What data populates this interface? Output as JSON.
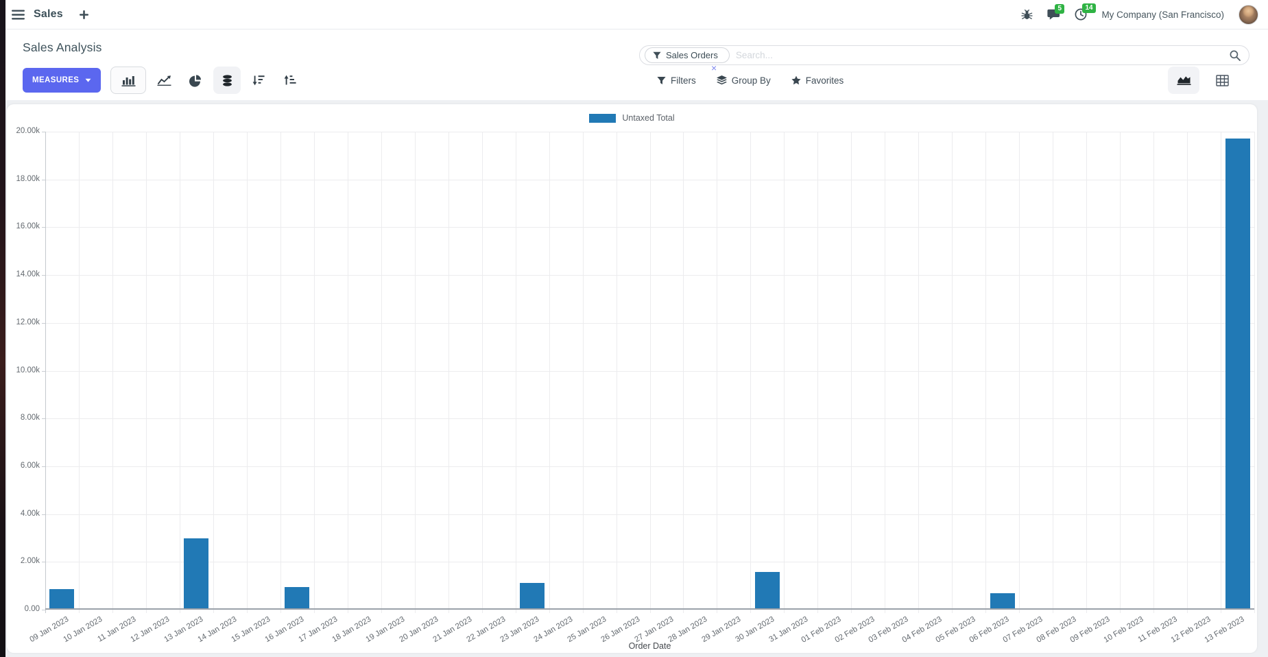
{
  "navbar": {
    "brand": "Sales",
    "messages_badge": "5",
    "activities_badge": "14",
    "company": "My Company (San Francisco)"
  },
  "control_panel": {
    "title": "Sales Analysis",
    "measures_label": "MEASURES",
    "search": {
      "facet": "Sales Orders",
      "facet_remove": "×",
      "placeholder": "Search..."
    },
    "filters_label": "Filters",
    "group_by_label": "Group By",
    "favorites_label": "Favorites"
  },
  "chart_data": {
    "type": "bar",
    "title": "",
    "legend_position": "top",
    "grid": true,
    "xlabel": "Order Date",
    "ylabel": "",
    "ylim": [
      0,
      20000
    ],
    "y_ticks": [
      "0.00",
      "2.00k",
      "4.00k",
      "6.00k",
      "8.00k",
      "10.00k",
      "12.00k",
      "14.00k",
      "16.00k",
      "18.00k",
      "20.00k"
    ],
    "categories": [
      "09 Jan 2023",
      "10 Jan 2023",
      "11 Jan 2023",
      "12 Jan 2023",
      "13 Jan 2023",
      "14 Jan 2023",
      "15 Jan 2023",
      "16 Jan 2023",
      "17 Jan 2023",
      "18 Jan 2023",
      "19 Jan 2023",
      "20 Jan 2023",
      "21 Jan 2023",
      "22 Jan 2023",
      "23 Jan 2023",
      "24 Jan 2023",
      "25 Jan 2023",
      "26 Jan 2023",
      "27 Jan 2023",
      "28 Jan 2023",
      "29 Jan 2023",
      "30 Jan 2023",
      "31 Jan 2023",
      "01 Feb 2023",
      "02 Feb 2023",
      "03 Feb 2023",
      "04 Feb 2023",
      "05 Feb 2023",
      "06 Feb 2023",
      "07 Feb 2023",
      "08 Feb 2023",
      "09 Feb 2023",
      "10 Feb 2023",
      "11 Feb 2023",
      "12 Feb 2023",
      "13 Feb 2023"
    ],
    "legend": [
      {
        "name": "Untaxed Total",
        "color": "#2179b5"
      }
    ],
    "series": [
      {
        "name": "Untaxed Total",
        "color": "#2179b5",
        "values": [
          850,
          0,
          0,
          0,
          2980,
          0,
          0,
          960,
          0,
          0,
          0,
          0,
          0,
          0,
          1120,
          0,
          0,
          0,
          0,
          0,
          0,
          1570,
          0,
          0,
          0,
          0,
          0,
          0,
          690,
          0,
          0,
          0,
          0,
          0,
          0,
          19700
        ]
      }
    ]
  },
  "colors": {
    "bar": "#2179b5",
    "primary_button": "#5b67ef",
    "badge_green": "#2fb344",
    "navbar_text": "#3c4f58"
  }
}
